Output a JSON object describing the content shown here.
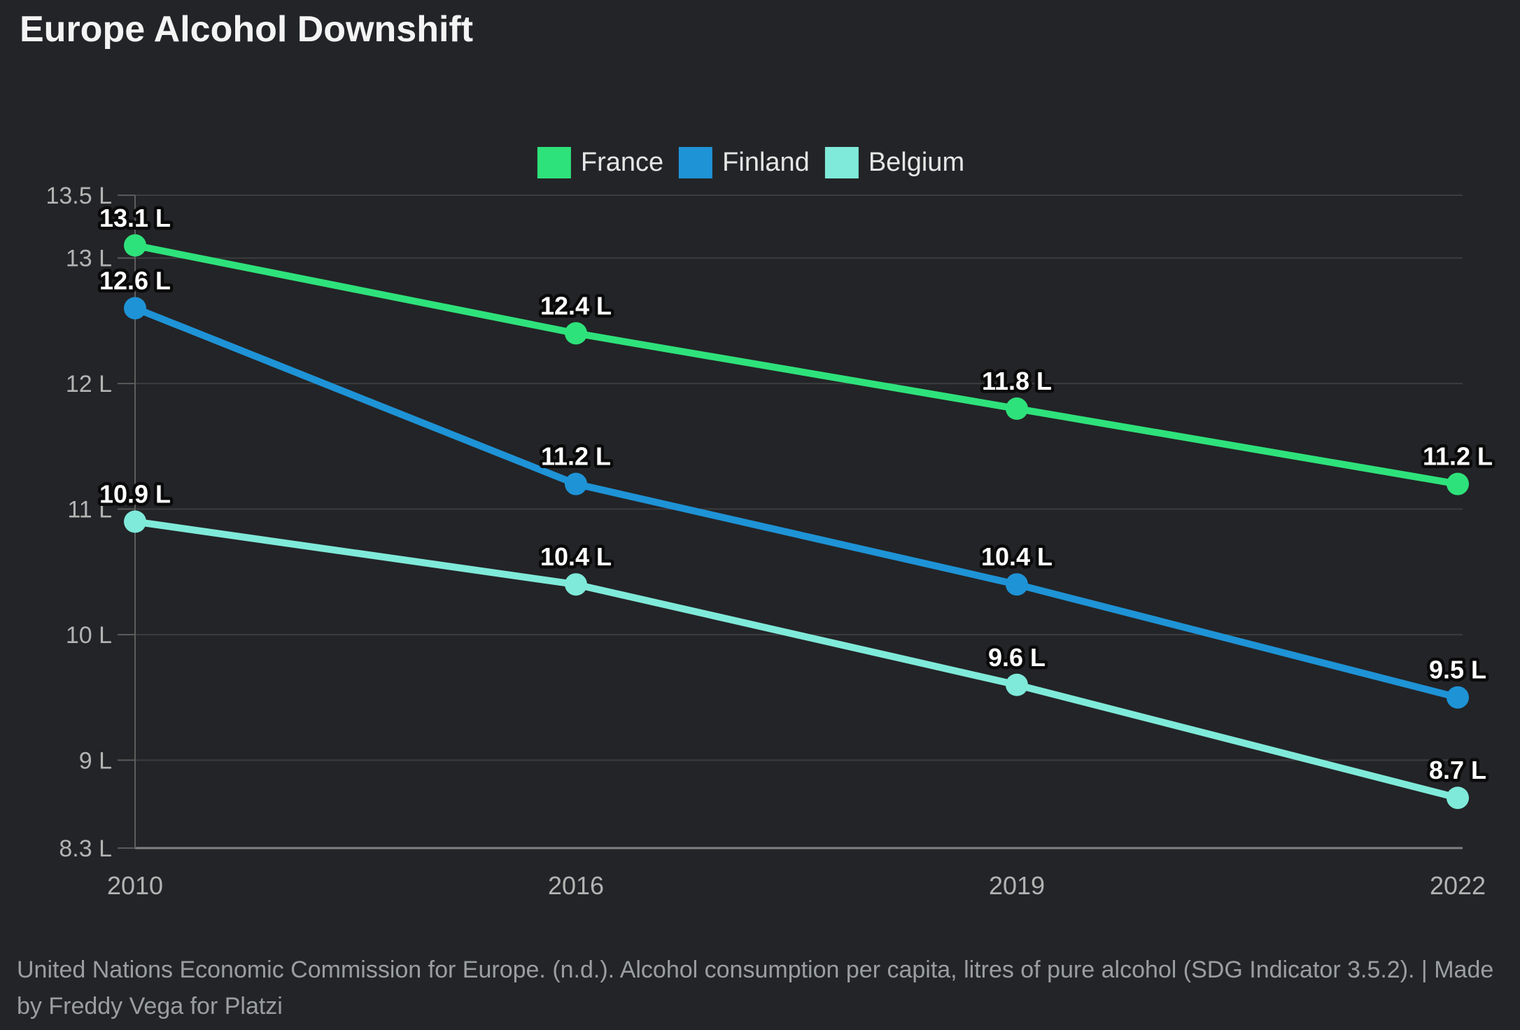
{
  "title": "Europe Alcohol Downshift",
  "footer": "United Nations Economic Commission for Europe. (n.d.). Alcohol consumption per capita, litres of pure alcohol (SDG Indicator 3.5.2). | Made by Freddy Vega for Platzi",
  "colors": {
    "background": "#232427",
    "title_text": "#f4f4f4",
    "axis_text": "#b3b3b3",
    "gridline": "#3b3c3e",
    "axis_line": "#808080",
    "tick_mark": "#5a5a5a",
    "data_label_text": "#ffffff",
    "data_label_outline": "#0a0a0a",
    "footer_text": "#9b9ea1"
  },
  "chart_data": {
    "type": "line",
    "title": "Europe Alcohol Downshift",
    "x": [
      "2010",
      "2016",
      "2019",
      "2022"
    ],
    "series": [
      {
        "name": "France",
        "color": "#2ee27b",
        "values": [
          13.1,
          12.4,
          11.8,
          11.2
        ]
      },
      {
        "name": "Finland",
        "color": "#1e93d6",
        "values": [
          12.6,
          11.2,
          10.4,
          9.5
        ]
      },
      {
        "name": "Belgium",
        "color": "#7feada",
        "values": [
          10.9,
          10.4,
          9.6,
          8.7
        ]
      }
    ],
    "unit": "L",
    "value_label_suffix": " L",
    "y_ticks": [
      13.5,
      13,
      12,
      11,
      10,
      9,
      8.3
    ],
    "y_tick_labels": [
      "13.5 L",
      "13 L",
      "12 L",
      "11 L",
      "10 L",
      "9 L",
      "8.3 L"
    ],
    "ylim": [
      8.3,
      13.5
    ],
    "xlabel": "",
    "ylabel": "",
    "legend_position": "top",
    "legend_entries": [
      "France",
      "Finland",
      "Belgium"
    ],
    "grid": "horizontal",
    "point_markers": true,
    "data_labels_shown": true
  }
}
